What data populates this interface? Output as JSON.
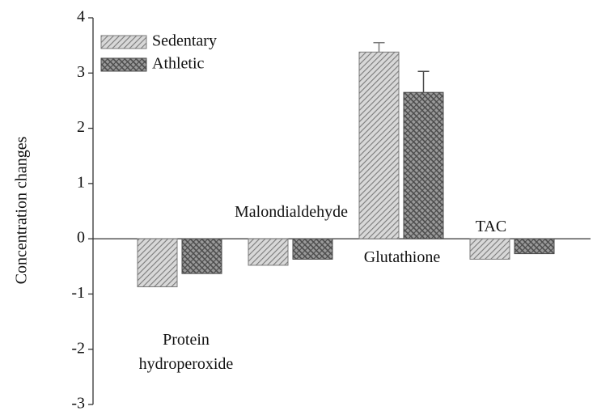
{
  "chart_data": {
    "type": "bar",
    "y_label": "Concentration changes",
    "categories": [
      "Protein hydroperoxide",
      "Malondialdehyde",
      "Glutathione",
      "TAC"
    ],
    "series": [
      {
        "name": "Sedentary",
        "color": "#7a7a7a",
        "values": [
          -0.87,
          -0.48,
          3.38,
          -0.37
        ],
        "errors": [
          null,
          null,
          0.17,
          null
        ]
      },
      {
        "name": "Athletic",
        "color": "#4a4a4a",
        "values": [
          -0.63,
          -0.37,
          2.65,
          -0.27
        ],
        "errors": [
          null,
          null,
          0.38,
          null
        ]
      }
    ],
    "ylim": [
      -3,
      4
    ],
    "yticks": [
      -3,
      -2,
      -1,
      0,
      1,
      2,
      3,
      4
    ],
    "legend": "upper left",
    "grid": false
  }
}
